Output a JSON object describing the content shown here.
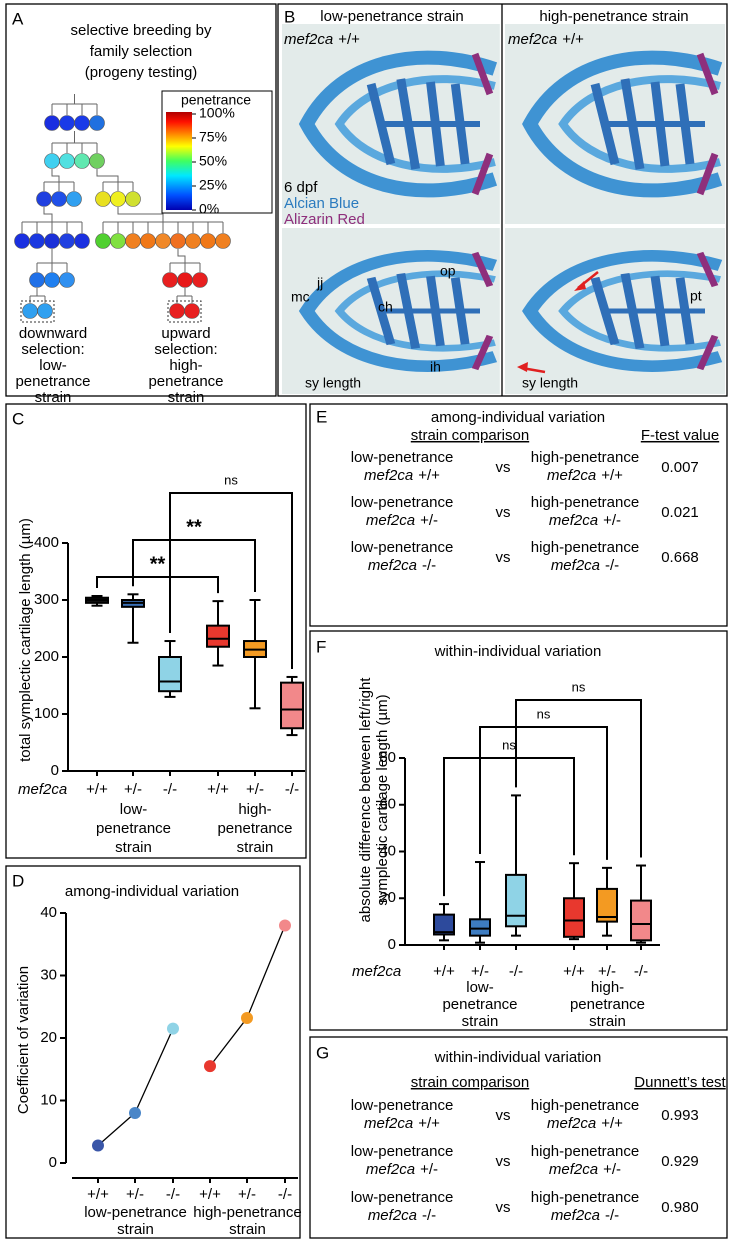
{
  "panel_labels": [
    "A",
    "B",
    "C",
    "D",
    "E",
    "F",
    "G"
  ],
  "panel_a": {
    "title": [
      "selective breeding by",
      "family selection",
      "(progeny testing)"
    ],
    "legend": {
      "title": "penetrance",
      "ticks": [
        {
          "value": 100,
          "label": "100%"
        },
        {
          "value": 75,
          "label": "75%"
        },
        {
          "value": 50,
          "label": "50%"
        },
        {
          "value": 25,
          "label": "25%"
        },
        {
          "value": 0,
          "label": "0%"
        }
      ]
    },
    "downward": [
      "downward",
      "selection:",
      "low-",
      "penetrance",
      "strain"
    ],
    "upward": [
      "upward",
      "selection:",
      "high-",
      "penetrance",
      "strain"
    ]
  },
  "panel_b": {
    "columns": [
      "low-penetrance strain",
      "high-penetrance strain"
    ],
    "genotype_labels": [
      {
        "gene": "mef2ca",
        "genotype": "+/+"
      },
      {
        "gene": "mef2ca",
        "genotype": "+/+"
      }
    ],
    "stain_labels": [
      "6 dpf",
      "Alcian Blue",
      "Alizarin Red"
    ],
    "annotations_low": [
      "op",
      "jj",
      "mc",
      "ch",
      "ih",
      "sy length"
    ],
    "annotations_high": [
      "pt",
      "sy length"
    ]
  },
  "chart_data": [
    {
      "type": "box",
      "y_label": [
        "total symplectic cartilage length (µm)"
      ],
      "x_label": "mef2ca",
      "ylim": [
        0,
        400
      ],
      "yticks": [
        0,
        100,
        200,
        300,
        400
      ],
      "groups": [
        {
          "label": [
            "low-",
            "penetrance",
            "strain"
          ],
          "categories": [
            "+/+",
            "+/-",
            "-/-"
          ],
          "boxes": [
            {
              "min": 290,
              "q1": 295,
              "median": 300,
              "q3": 304,
              "max": 307,
              "color": "#111111"
            },
            {
              "min": 225,
              "q1": 288,
              "median": 295,
              "q3": 300,
              "max": 310,
              "color": "#3a6fb5"
            },
            {
              "min": 130,
              "q1": 140,
              "median": 157,
              "q3": 200,
              "max": 228,
              "color": "#8fd3e6"
            }
          ]
        },
        {
          "label": [
            "high-",
            "penetrance",
            "strain"
          ],
          "categories": [
            "+/+",
            "+/-",
            "-/-"
          ],
          "boxes": [
            {
              "min": 185,
              "q1": 218,
              "median": 232,
              "q3": 255,
              "max": 298,
              "color": "#e8382e"
            },
            {
              "min": 110,
              "q1": 200,
              "median": 213,
              "q3": 228,
              "max": 300,
              "color": "#f39a22"
            },
            {
              "min": 63,
              "q1": 75,
              "median": 108,
              "q3": 155,
              "max": 165,
              "color": "#f2888a"
            }
          ]
        }
      ],
      "comparisons": [
        "**",
        "**",
        "ns"
      ]
    },
    {
      "type": "line",
      "title": "among-individual variation",
      "y_label": [
        "Coefficient of variation"
      ],
      "ylim": [
        0,
        40
      ],
      "yticks": [
        0,
        10,
        20,
        30,
        40
      ],
      "line_color": "#000000",
      "groups": [
        {
          "label": [
            "low-penetrance",
            "strain"
          ],
          "categories": [
            "+/+",
            "+/-",
            "-/-"
          ],
          "values": [
            2.8,
            8,
            21.5
          ],
          "colors": [
            "#3a56a8",
            "#4a86c8",
            "#8fd3e6"
          ]
        },
        {
          "label": [
            "high-penetrance",
            "strain"
          ],
          "categories": [
            "+/+",
            "+/-",
            "-/-"
          ],
          "values": [
            15.5,
            23.2,
            38
          ],
          "colors": [
            "#e8382e",
            "#f39a22",
            "#f2888a"
          ]
        }
      ]
    },
    {
      "type": "box",
      "title": "within-individual variation",
      "y_label": [
        "absolute difference between left/right",
        "symplectic cartilage length (µm)"
      ],
      "x_label": "mef2ca",
      "ylim": [
        0,
        80
      ],
      "yticks": [
        0,
        20,
        40,
        60,
        80
      ],
      "groups": [
        {
          "label": [
            "low-",
            "penetrance",
            "strain"
          ],
          "categories": [
            "+/+",
            "+/-",
            "-/-"
          ],
          "boxes": [
            {
              "min": 2,
              "q1": 4.5,
              "median": 5.5,
              "q3": 13,
              "max": 17.5,
              "color": "#2d4a9c"
            },
            {
              "min": 1,
              "q1": 4,
              "median": 7,
              "q3": 11,
              "max": 35.5,
              "color": "#3e7dc2"
            },
            {
              "min": 4,
              "q1": 8,
              "median": 12.5,
              "q3": 30,
              "max": 64,
              "color": "#8fd3e6"
            }
          ]
        },
        {
          "label": [
            "high-",
            "penetrance",
            "strain"
          ],
          "categories": [
            "+/+",
            "+/-",
            "-/-"
          ],
          "boxes": [
            {
              "min": 2.5,
              "q1": 3.5,
              "median": 10.5,
              "q3": 20,
              "max": 35,
              "color": "#e8382e"
            },
            {
              "min": 4,
              "q1": 10,
              "median": 12,
              "q3": 24,
              "max": 33,
              "color": "#f39a22"
            },
            {
              "min": 1,
              "q1": 2,
              "median": 9,
              "q3": 19,
              "max": 34,
              "color": "#f2888a"
            }
          ]
        }
      ],
      "comparisons": [
        "ns",
        "ns",
        "ns"
      ]
    }
  ],
  "panel_e": {
    "title": "among-individual variation",
    "header": [
      "strain comparison",
      "F-test value"
    ],
    "rows": [
      {
        "left": {
          "strain": "low-penetrance",
          "gene": "mef2ca",
          "genotype": "+/+"
        },
        "vs": "vs",
        "right": {
          "strain": "high-penetrance",
          "gene": "mef2ca",
          "genotype": "+/+"
        },
        "value": "0.007"
      },
      {
        "left": {
          "strain": "low-penetrance",
          "gene": "mef2ca",
          "genotype": "+/-"
        },
        "vs": "vs",
        "right": {
          "strain": "high-penetrance",
          "gene": "mef2ca",
          "genotype": "+/-"
        },
        "value": "0.021"
      },
      {
        "left": {
          "strain": "low-penetrance",
          "gene": "mef2ca",
          "genotype": "-/-"
        },
        "vs": "vs",
        "right": {
          "strain": "high-penetrance",
          "gene": "mef2ca",
          "genotype": "-/-"
        },
        "value": "0.668"
      }
    ]
  },
  "panel_g": {
    "title": "within-individual variation",
    "header": [
      "strain comparison",
      "Dunnett’s test"
    ],
    "rows": [
      {
        "left": {
          "strain": "low-penetrance",
          "gene": "mef2ca",
          "genotype": "+/+"
        },
        "vs": "vs",
        "right": {
          "strain": "high-penetrance",
          "gene": "mef2ca",
          "genotype": "+/+"
        },
        "value": "0.993"
      },
      {
        "left": {
          "strain": "low-penetrance",
          "gene": "mef2ca",
          "genotype": "+/-"
        },
        "vs": "vs",
        "right": {
          "strain": "high-penetrance",
          "gene": "mef2ca",
          "genotype": "+/-"
        },
        "value": "0.929"
      },
      {
        "left": {
          "strain": "low-penetrance",
          "gene": "mef2ca",
          "genotype": "-/-"
        },
        "vs": "vs",
        "right": {
          "strain": "high-penetrance",
          "gene": "mef2ca",
          "genotype": "-/-"
        },
        "value": "0.980"
      }
    ]
  }
}
